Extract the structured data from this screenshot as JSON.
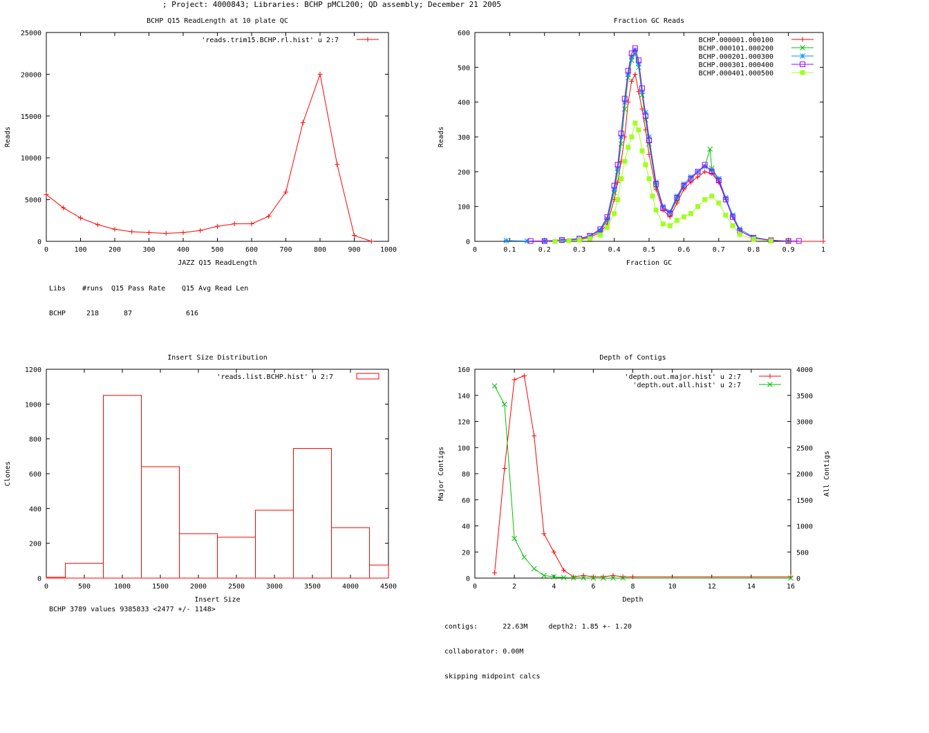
{
  "header": "; Project: 4000843; Libraries: BCHP pMCL200; QD assembly; December 21 2005",
  "chart_data": [
    {
      "id": "readlength",
      "type": "line",
      "title": "BCHP Q15 ReadLength at 10 plate QC",
      "xlabel": "JAZZ Q15 ReadLength",
      "ylabel": "Reads",
      "xlim": [
        0,
        1000
      ],
      "ylim": [
        0,
        25000
      ],
      "xticks": [
        0,
        100,
        200,
        300,
        400,
        500,
        600,
        700,
        800,
        900,
        1000
      ],
      "yticks": [
        0,
        5000,
        10000,
        15000,
        20000,
        25000
      ],
      "series": [
        {
          "name": "'reads.trim15.BCHP.rl.hist' u 2:7",
          "color": "#ff0000",
          "marker": "plus",
          "x": [
            0,
            50,
            100,
            150,
            200,
            250,
            300,
            350,
            400,
            450,
            500,
            550,
            600,
            650,
            700,
            750,
            800,
            850,
            900,
            950
          ],
          "y": [
            5600,
            4000,
            2800,
            2000,
            1450,
            1150,
            1050,
            950,
            1050,
            1300,
            1800,
            2100,
            2100,
            3000,
            5900,
            14200,
            20000,
            9200,
            700,
            0
          ]
        }
      ],
      "stats": {
        "headers": [
          "Libs",
          "#runs",
          "Q15 Pass Rate",
          "Q15 Avg Read Len"
        ],
        "row": [
          "BCHP",
          "218",
          "87",
          "616"
        ]
      }
    },
    {
      "id": "gc",
      "type": "line",
      "title": "Fraction GC Reads",
      "xlabel": "Fraction GC",
      "ylabel": "Reads",
      "xlim": [
        0,
        1
      ],
      "ylim": [
        0,
        600
      ],
      "xticks": [
        0,
        0.1,
        0.2,
        0.3,
        0.4,
        0.5,
        0.6,
        0.7,
        0.8,
        0.9,
        1
      ],
      "yticks": [
        0,
        100,
        200,
        300,
        400,
        500,
        600
      ],
      "series": [
        {
          "name": "BCHP.000001.000100",
          "color": "#ff0000",
          "marker": "plus",
          "x": [
            0.2,
            0.25,
            0.3,
            0.33,
            0.36,
            0.38,
            0.4,
            0.41,
            0.42,
            0.43,
            0.44,
            0.45,
            0.46,
            0.47,
            0.48,
            0.49,
            0.5,
            0.52,
            0.54,
            0.56,
            0.58,
            0.6,
            0.62,
            0.64,
            0.66,
            0.68,
            0.7,
            0.72,
            0.74,
            0.76,
            0.8,
            0.85,
            0.9,
            1.0
          ],
          "y": [
            0,
            2,
            5,
            12,
            25,
            50,
            120,
            170,
            230,
            300,
            400,
            460,
            480,
            430,
            380,
            320,
            250,
            150,
            90,
            70,
            110,
            150,
            170,
            185,
            200,
            195,
            170,
            120,
            70,
            30,
            10,
            3,
            0,
            0
          ]
        },
        {
          "name": "BCHP.000101.000200",
          "color": "#00c000",
          "marker": "x",
          "x": [
            0.2,
            0.25,
            0.3,
            0.33,
            0.36,
            0.38,
            0.4,
            0.41,
            0.42,
            0.43,
            0.44,
            0.45,
            0.46,
            0.47,
            0.48,
            0.49,
            0.5,
            0.52,
            0.54,
            0.56,
            0.58,
            0.6,
            0.62,
            0.64,
            0.66,
            0.675,
            0.68,
            0.7,
            0.72,
            0.74,
            0.76,
            0.8,
            0.85,
            0.9
          ],
          "y": [
            0,
            3,
            6,
            15,
            30,
            60,
            140,
            200,
            280,
            380,
            470,
            520,
            540,
            500,
            420,
            350,
            280,
            160,
            100,
            80,
            120,
            160,
            180,
            200,
            215,
            265,
            210,
            180,
            125,
            75,
            35,
            12,
            3,
            0
          ]
        },
        {
          "name": "BCHP.000201.000300",
          "color": "#0090ff",
          "marker": "star",
          "x": [
            0.09,
            0.15,
            0.2,
            0.25,
            0.3,
            0.33,
            0.36,
            0.38,
            0.4,
            0.41,
            0.42,
            0.43,
            0.44,
            0.45,
            0.46,
            0.47,
            0.48,
            0.49,
            0.5,
            0.52,
            0.54,
            0.56,
            0.58,
            0.6,
            0.62,
            0.64,
            0.66,
            0.68,
            0.7,
            0.72,
            0.74,
            0.76,
            0.8,
            0.85
          ],
          "y": [
            2,
            1,
            1,
            3,
            7,
            15,
            32,
            65,
            150,
            210,
            300,
            400,
            480,
            530,
            550,
            510,
            430,
            370,
            300,
            170,
            100,
            85,
            130,
            165,
            185,
            200,
            215,
            205,
            180,
            125,
            75,
            35,
            12,
            2
          ]
        },
        {
          "name": "BCHP.000301.000400",
          "color": "#a000ff",
          "marker": "square",
          "x": [
            0.16,
            0.2,
            0.25,
            0.3,
            0.33,
            0.36,
            0.38,
            0.4,
            0.41,
            0.42,
            0.43,
            0.44,
            0.45,
            0.46,
            0.47,
            0.48,
            0.49,
            0.5,
            0.52,
            0.54,
            0.56,
            0.58,
            0.6,
            0.62,
            0.64,
            0.66,
            0.68,
            0.7,
            0.72,
            0.74,
            0.76,
            0.8,
            0.85,
            0.9,
            0.93
          ],
          "y": [
            1,
            1,
            4,
            8,
            16,
            35,
            70,
            160,
            220,
            310,
            410,
            490,
            540,
            555,
            520,
            440,
            360,
            290,
            165,
            95,
            80,
            125,
            160,
            180,
            200,
            220,
            200,
            175,
            120,
            70,
            30,
            10,
            3,
            1,
            1
          ]
        },
        {
          "name": "BCHP.000401.000500",
          "color": "#a0ff20",
          "marker": "filledsquare",
          "x": [
            0.23,
            0.27,
            0.3,
            0.33,
            0.36,
            0.38,
            0.4,
            0.41,
            0.42,
            0.43,
            0.44,
            0.45,
            0.46,
            0.47,
            0.48,
            0.49,
            0.5,
            0.51,
            0.52,
            0.54,
            0.56,
            0.58,
            0.6,
            0.62,
            0.64,
            0.66,
            0.68,
            0.7,
            0.72,
            0.74,
            0.76,
            0.8,
            0.85
          ],
          "y": [
            0,
            2,
            4,
            8,
            18,
            40,
            80,
            120,
            180,
            230,
            270,
            300,
            340,
            320,
            260,
            220,
            180,
            130,
            90,
            50,
            45,
            60,
            70,
            80,
            100,
            120,
            130,
            110,
            75,
            45,
            20,
            6,
            1
          ]
        }
      ]
    },
    {
      "id": "insert",
      "type": "bar",
      "title": "Insert Size Distribution",
      "xlabel": "Insert Size",
      "ylabel": "Clones",
      "xlim": [
        0,
        4500
      ],
      "ylim": [
        0,
        1200
      ],
      "xticks": [
        0,
        500,
        1000,
        1500,
        2000,
        2500,
        3000,
        3500,
        4000,
        4500
      ],
      "yticks": [
        0,
        200,
        400,
        600,
        800,
        1000,
        1200
      ],
      "legend": "'reads.list.BCHP.hist' u 2:7",
      "color": "#ff0000",
      "bins": [
        {
          "start": 0,
          "end": 250,
          "value": 5
        },
        {
          "start": 250,
          "end": 750,
          "value": 85
        },
        {
          "start": 750,
          "end": 1250,
          "value": 1050
        },
        {
          "start": 1250,
          "end": 1750,
          "value": 640
        },
        {
          "start": 1750,
          "end": 2250,
          "value": 255
        },
        {
          "start": 2250,
          "end": 2750,
          "value": 235
        },
        {
          "start": 2750,
          "end": 3250,
          "value": 390
        },
        {
          "start": 3250,
          "end": 3750,
          "value": 745
        },
        {
          "start": 3750,
          "end": 4250,
          "value": 290
        },
        {
          "start": 4250,
          "end": 4500,
          "value": 75
        }
      ],
      "stats": "BCHP 3789 values 9385833 <2477 +/- 1148>"
    },
    {
      "id": "depth",
      "type": "line",
      "title": "Depth of Contigs",
      "xlabel": "Depth",
      "ylabel": "Major Contigs",
      "y2label": "All Contigs",
      "xlim": [
        0,
        16
      ],
      "ylim": [
        0,
        160
      ],
      "y2lim": [
        0,
        4000
      ],
      "xticks": [
        0,
        2,
        4,
        6,
        8,
        10,
        12,
        14,
        16
      ],
      "yticks": [
        0,
        20,
        40,
        60,
        80,
        100,
        120,
        140,
        160
      ],
      "y2ticks": [
        0,
        500,
        1000,
        1500,
        2000,
        2500,
        3000,
        3500,
        4000
      ],
      "series": [
        {
          "name": "'depth.out.major.hist' u 2:7",
          "color": "#ff0000",
          "marker": "plus",
          "axis": "y1",
          "x": [
            1,
            1.5,
            2,
            2.5,
            3,
            3.5,
            4,
            4.5,
            5,
            5.5,
            6,
            6.5,
            7,
            7.5,
            8,
            16
          ],
          "y": [
            4,
            84,
            152,
            155,
            109,
            34,
            20,
            6,
            1,
            2,
            1,
            1,
            2,
            1,
            1,
            1
          ]
        },
        {
          "name": "'depth.out.all.hist' u 2:7",
          "color": "#00c000",
          "marker": "x",
          "axis": "y2",
          "x": [
            1,
            1.5,
            2,
            2.5,
            3,
            3.5,
            4,
            4.5,
            5,
            5.5,
            6,
            6.5,
            7,
            7.5,
            16
          ],
          "y": [
            3680,
            3330,
            760,
            400,
            180,
            50,
            25,
            10,
            5,
            3,
            2,
            2,
            2,
            1,
            1
          ]
        }
      ],
      "stats": [
        "contigs:      22.63M     depth2: 1.85 +- 1.20",
        "collaborator: 0.00M",
        "skipping midpoint calcs"
      ]
    }
  ]
}
